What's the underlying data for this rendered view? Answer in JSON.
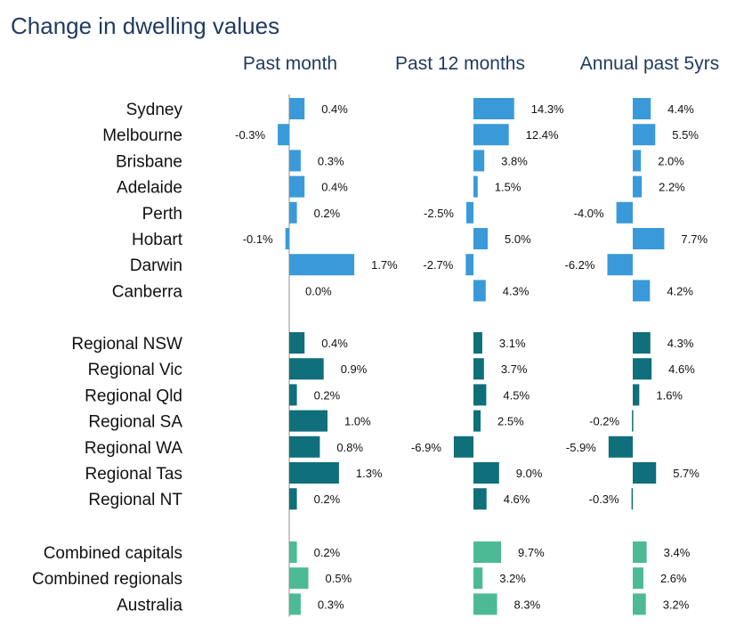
{
  "chart_data": {
    "type": "bar",
    "title": "Change in dwelling values",
    "panels": [
      "Past month",
      "Past 12 months",
      "Annual past 5yrs"
    ],
    "colors": {
      "capitals": "#3a9ad9",
      "regionals": "#0f6f7a",
      "combined": "#4dba96",
      "axis": "#c8c8c8"
    },
    "groups": [
      {
        "name": "capitals",
        "rows": [
          {
            "label": "Sydney",
            "values": [
              0.4,
              14.3,
              4.4
            ],
            "labels": [
              "0.4%",
              "14.3%",
              "4.4%"
            ]
          },
          {
            "label": "Melbourne",
            "values": [
              -0.3,
              12.4,
              5.5
            ],
            "labels": [
              "-0.3%",
              "12.4%",
              "5.5%"
            ]
          },
          {
            "label": "Brisbane",
            "values": [
              0.3,
              3.8,
              2.0
            ],
            "labels": [
              "0.3%",
              "3.8%",
              "2.0%"
            ]
          },
          {
            "label": "Adelaide",
            "values": [
              0.4,
              1.5,
              2.2
            ],
            "labels": [
              "0.4%",
              "1.5%",
              "2.2%"
            ]
          },
          {
            "label": "Perth",
            "values": [
              0.2,
              -2.5,
              -4.0
            ],
            "labels": [
              "0.2%",
              "-2.5%",
              "-4.0%"
            ]
          },
          {
            "label": "Hobart",
            "values": [
              -0.1,
              5.0,
              7.7
            ],
            "labels": [
              "-0.1%",
              "5.0%",
              "7.7%"
            ]
          },
          {
            "label": "Darwin",
            "values": [
              1.7,
              -2.7,
              -6.2
            ],
            "labels": [
              "1.7%",
              "-2.7%",
              "-6.2%"
            ]
          },
          {
            "label": "Canberra",
            "values": [
              0.0,
              4.3,
              4.2
            ],
            "labels": [
              "0.0%",
              "4.3%",
              "4.2%"
            ]
          }
        ]
      },
      {
        "name": "regionals",
        "rows": [
          {
            "label": "Regional NSW",
            "values": [
              0.4,
              3.1,
              4.3
            ],
            "labels": [
              "0.4%",
              "3.1%",
              "4.3%"
            ]
          },
          {
            "label": "Regional Vic",
            "values": [
              0.9,
              3.7,
              4.6
            ],
            "labels": [
              "0.9%",
              "3.7%",
              "4.6%"
            ]
          },
          {
            "label": "Regional Qld",
            "values": [
              0.2,
              4.5,
              1.6
            ],
            "labels": [
              "0.2%",
              "4.5%",
              "1.6%"
            ]
          },
          {
            "label": "Regional SA",
            "values": [
              1.0,
              2.5,
              -0.2
            ],
            "labels": [
              "1.0%",
              "2.5%",
              "-0.2%"
            ]
          },
          {
            "label": "Regional WA",
            "values": [
              0.8,
              -6.9,
              -5.9
            ],
            "labels": [
              "0.8%",
              "-6.9%",
              "-5.9%"
            ]
          },
          {
            "label": "Regional Tas",
            "values": [
              1.3,
              9.0,
              5.7
            ],
            "labels": [
              "1.3%",
              "9.0%",
              "5.7%"
            ]
          },
          {
            "label": "Regional NT",
            "values": [
              0.2,
              4.6,
              -0.3
            ],
            "labels": [
              "0.2%",
              "4.6%",
              "-0.3%"
            ]
          }
        ]
      },
      {
        "name": "combined",
        "rows": [
          {
            "label": "Combined capitals",
            "values": [
              0.2,
              9.7,
              3.4
            ],
            "labels": [
              "0.2%",
              "9.7%",
              "3.4%"
            ]
          },
          {
            "label": "Combined regionals",
            "values": [
              0.5,
              3.2,
              2.6
            ],
            "labels": [
              "0.5%",
              "3.2%",
              "2.6%"
            ]
          },
          {
            "label": "Australia",
            "values": [
              0.3,
              8.3,
              3.2
            ],
            "labels": [
              "0.3%",
              "8.3%",
              "3.2%"
            ]
          }
        ]
      }
    ]
  }
}
